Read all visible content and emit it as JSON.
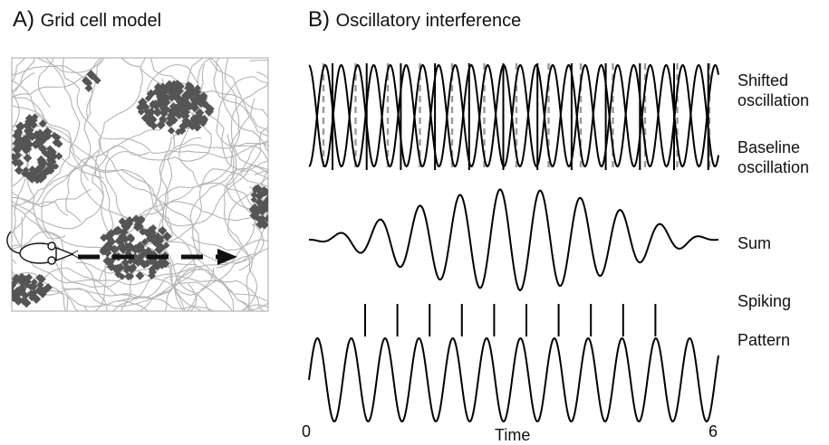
{
  "panel_a": {
    "letter": "A)",
    "title": "Grid cell model"
  },
  "panel_b": {
    "letter": "B)",
    "title": "Oscillatory interference"
  },
  "labels": {
    "shifted": [
      "Shifted",
      "oscillation"
    ],
    "baseline": [
      "Baseline",
      "oscillation"
    ],
    "sum": "Sum",
    "spiking": [
      "Spiking",
      "Pattern"
    ]
  },
  "axis": {
    "start": "0",
    "label": "Time",
    "end": "6"
  },
  "colors": {
    "trajectory": "#b4b4b4",
    "spikes": "#555555",
    "curves": "#000000",
    "markers": "#9a9a9a"
  },
  "icons": {
    "animal": "rat-icon",
    "direction": "arrow-right-icon"
  }
}
